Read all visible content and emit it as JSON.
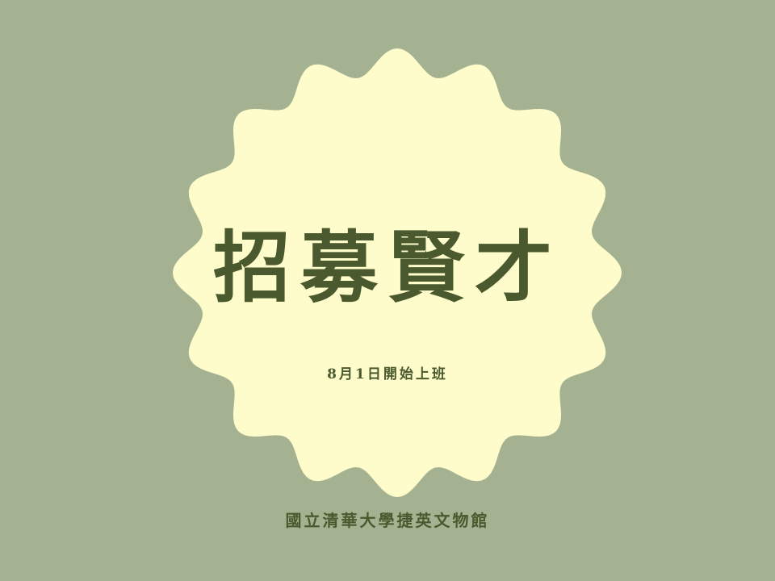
{
  "colors": {
    "background": "#a5b292",
    "badge": "#fefccb",
    "text": "#4a5a2e"
  },
  "poster": {
    "title": "招募賢才",
    "subtitle": "8月1日開始上班",
    "organization": "國立清華大學捷英文物館"
  }
}
